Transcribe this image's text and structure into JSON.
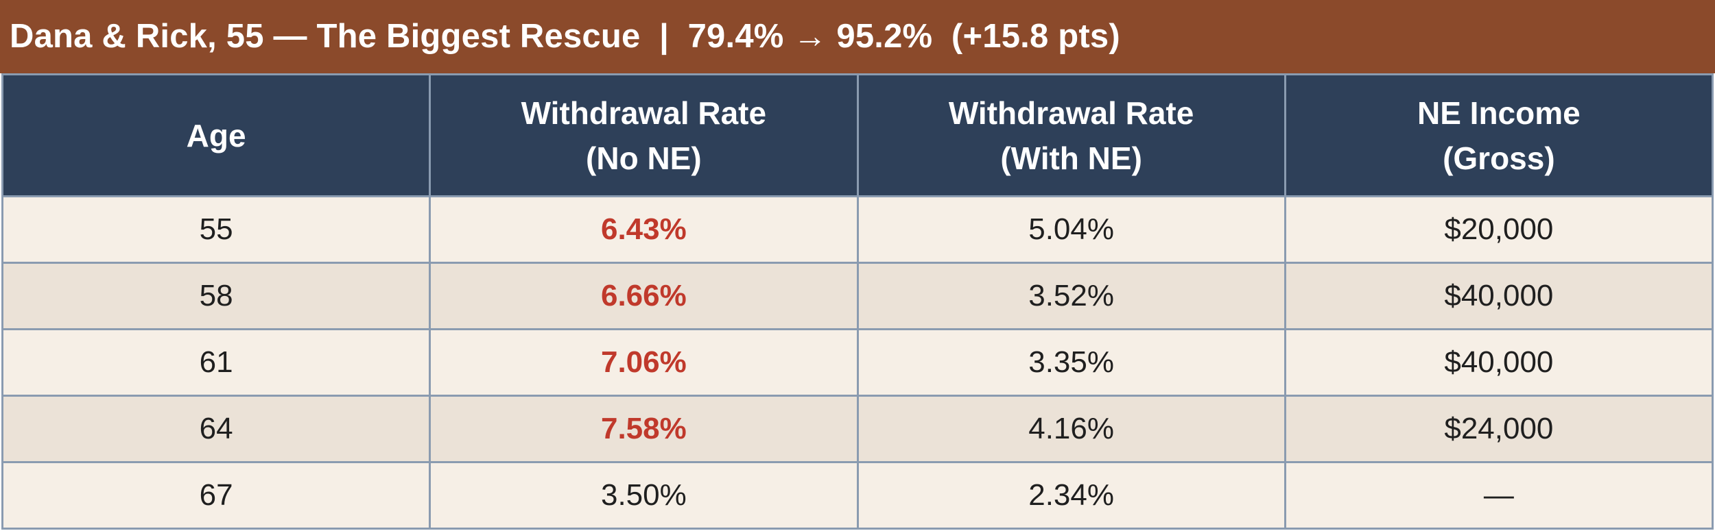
{
  "title": "Dana & Rick, 55 — The Biggest Rescue  |  79.4% → 95.2%  (+15.8 pts)",
  "colors": {
    "title_bg": "#8b4a2b",
    "header_bg": "#2e4059",
    "row_light": "#f6efe6",
    "row_dark": "#ebe2d7",
    "highlight_text": "#c0392b",
    "grid_line": "#8a9bb0"
  },
  "table": {
    "headers": [
      [
        "Age"
      ],
      [
        "Withdrawal Rate",
        "(No NE)"
      ],
      [
        "Withdrawal Rate",
        "(With NE)"
      ],
      [
        "NE Income",
        "(Gross)"
      ]
    ],
    "rows": [
      {
        "age": "55",
        "rate_no_ne": "6.43%",
        "rate_with_ne": "5.04%",
        "ne_income": "$20,000",
        "highlight_no_ne": true
      },
      {
        "age": "58",
        "rate_no_ne": "6.66%",
        "rate_with_ne": "3.52%",
        "ne_income": "$40,000",
        "highlight_no_ne": true
      },
      {
        "age": "61",
        "rate_no_ne": "7.06%",
        "rate_with_ne": "3.35%",
        "ne_income": "$40,000",
        "highlight_no_ne": true
      },
      {
        "age": "64",
        "rate_no_ne": "7.58%",
        "rate_with_ne": "4.16%",
        "ne_income": "$24,000",
        "highlight_no_ne": true
      },
      {
        "age": "67",
        "rate_no_ne": "3.50%",
        "rate_with_ne": "2.34%",
        "ne_income": "—",
        "highlight_no_ne": false
      }
    ]
  }
}
